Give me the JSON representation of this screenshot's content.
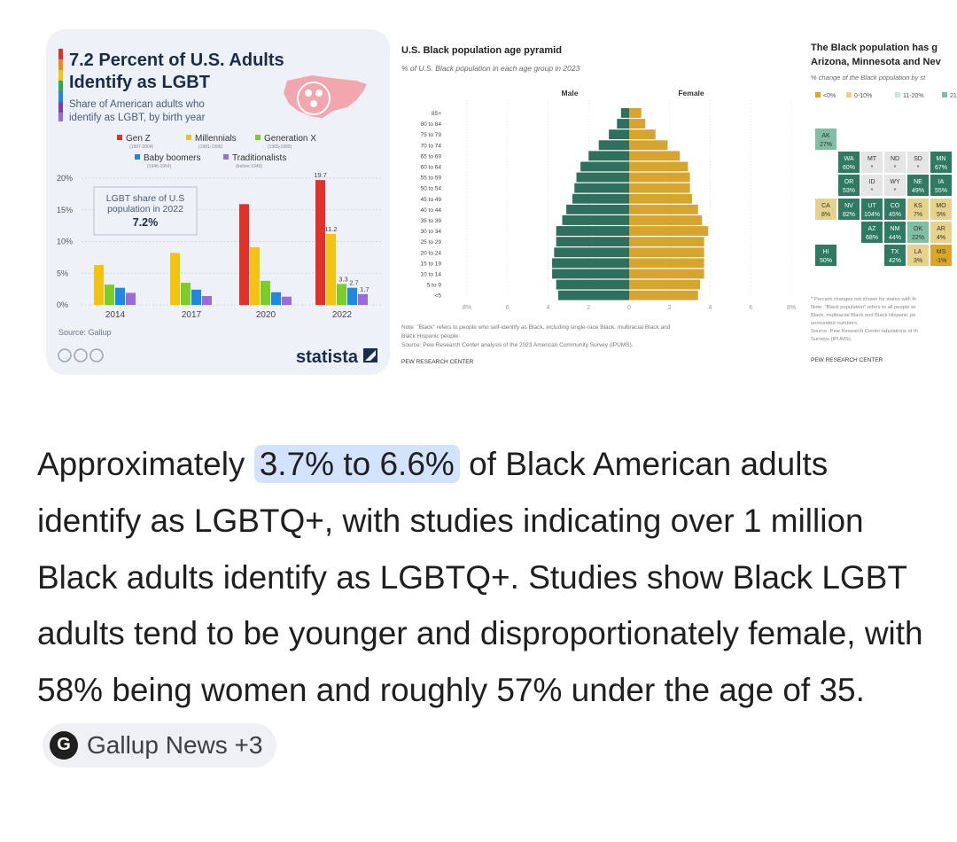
{
  "image_results": [
    {
      "title_line1": "7.2 Percent of U.S. Adults",
      "title_line2": "Identify as LGBT",
      "subtitle_line1": "Share of American adults who",
      "subtitle_line2": "identify as LGBT, by birth year",
      "callout_line1": "LGBT share of U.S",
      "callout_line2": "population in 2022",
      "callout_value": "7.2%",
      "source": "Source: Gallup",
      "brand": "statista"
    },
    {
      "title": "U.S. Black population age pyramid",
      "subtitle": "% of U.S. Black population in each age group in 2023",
      "note_line1": "Note: \"Black\" refers to people who self-identify as Black, including single-race Black, multiracial Black and",
      "note_line2": "Black Hispanic people.",
      "note_line3": "Source: Pew Research Center analysis of the 2023 American Community Survey (IPUMS).",
      "brand": "PEW RESEARCH CENTER"
    },
    {
      "title_line1": "The Black population has g",
      "title_line2": "Arizona, Minnesota and Nev",
      "subtitle": "% change of the Black population by st",
      "legend": [
        "<0%",
        "0-10%",
        "11-20%",
        "21-"
      ],
      "legend_colors": [
        "#d9a72a",
        "#e6d28a",
        "#cfe3dc",
        "#7fbfa4"
      ],
      "tiles": [
        {
          "state": "AK",
          "value": "27%",
          "color": "#7fbfa4"
        },
        {
          "state": "WA",
          "value": "60%",
          "color": "#2f7a62"
        },
        {
          "state": "MT",
          "value": "*",
          "color": "#e5e5e5"
        },
        {
          "state": "ND",
          "value": "*",
          "color": "#e5e5e5"
        },
        {
          "state": "SD",
          "value": "*",
          "color": "#e5e5e5"
        },
        {
          "state": "MN",
          "value": "67%",
          "color": "#2f7a62"
        },
        {
          "state": "OR",
          "value": "53%",
          "color": "#2f7a62"
        },
        {
          "state": "ID",
          "value": "*",
          "color": "#e5e5e5"
        },
        {
          "state": "WY",
          "value": "*",
          "color": "#e5e5e5"
        },
        {
          "state": "NE",
          "value": "49%",
          "color": "#2f7a62"
        },
        {
          "state": "IA",
          "value": "55%",
          "color": "#2f7a62"
        },
        {
          "state": "CA",
          "value": "8%",
          "color": "#e6d28a"
        },
        {
          "state": "NV",
          "value": "82%",
          "color": "#2f7a62"
        },
        {
          "state": "UT",
          "value": "104%",
          "color": "#2f7a62"
        },
        {
          "state": "CO",
          "value": "45%",
          "color": "#2f7a62"
        },
        {
          "state": "KS",
          "value": "7%",
          "color": "#e6d28a"
        },
        {
          "state": "MO",
          "value": "5%",
          "color": "#e6d28a"
        },
        {
          "state": "AZ",
          "value": "68%",
          "color": "#2f7a62"
        },
        {
          "state": "NM",
          "value": "44%",
          "color": "#2f7a62"
        },
        {
          "state": "OK",
          "value": "22%",
          "color": "#7fbfa4"
        },
        {
          "state": "AR",
          "value": "4%",
          "color": "#e6d28a"
        },
        {
          "state": "HI",
          "value": "50%",
          "color": "#2f7a62"
        },
        {
          "state": "TX",
          "value": "42%",
          "color": "#2f7a62"
        },
        {
          "state": "LA",
          "value": "3%",
          "color": "#e6d28a"
        },
        {
          "state": "MS",
          "value": "-1%",
          "color": "#d9a72a"
        }
      ],
      "note_line1": "* Percent changes not shown for states with fe",
      "note_line2": "Note: \"Black population\" refers to all people wi",
      "note_line3": "Black, multiracial Black and Black Hispanic pe",
      "note_line4": "unrounded numbers.",
      "note_line5": "Source: Pew Research Center tabulations of th",
      "note_line6": "Surveys (IPUMS).",
      "brand": "PEW RESEARCH CENTER"
    }
  ],
  "chart_data": [
    {
      "type": "bar",
      "categories": [
        "2014",
        "2017",
        "2020",
        "2022"
      ],
      "series": [
        {
          "name": "Gen Z",
          "sub": "(1997-2004)",
          "color": "#e0312b",
          "values": [
            null,
            null,
            15.9,
            19.7
          ]
        },
        {
          "name": "Millennials",
          "sub": "(1981-1996)",
          "color": "#f2c40f",
          "values": [
            6.3,
            8.2,
            9.1,
            11.2
          ]
        },
        {
          "name": "Generation X",
          "sub": "(1965-1980)",
          "color": "#7ccc2b",
          "values": [
            3.2,
            3.5,
            3.8,
            3.3
          ]
        },
        {
          "name": "Baby boomers",
          "sub": "(1946-1964)",
          "color": "#1e88e5",
          "values": [
            2.7,
            2.4,
            2.0,
            2.7
          ]
        },
        {
          "name": "Traditionalists",
          "sub": "(before 1946)",
          "color": "#9b6bd6",
          "values": [
            1.9,
            1.4,
            1.3,
            1.7
          ]
        }
      ],
      "data_labels": [
        "19.7",
        "11.2",
        "3.3",
        "2.7",
        "1.7"
      ],
      "yticks": [
        "0%",
        "5%",
        "10%",
        "15%",
        "20%"
      ],
      "ylim": [
        0,
        21
      ]
    },
    {
      "type": "bar",
      "orientation": "horizontal-pyramid",
      "left_label": "Male",
      "right_label": "Female",
      "left_color": "#2e6f5e",
      "right_color": "#d6a52f",
      "age_groups": [
        "<5",
        "5 to 9",
        "10 to 14",
        "15 to 19",
        "20 to 24",
        "25 to 29",
        "30 to 34",
        "35 to 39",
        "40 to 44",
        "45 to 49",
        "50 to 54",
        "55 to 59",
        "60 to 64",
        "65 to 69",
        "70 to 74",
        "75 to 79",
        "80 to 84",
        "85+"
      ],
      "male": [
        3.5,
        3.6,
        3.8,
        3.8,
        3.7,
        3.6,
        3.6,
        3.3,
        3.1,
        2.8,
        2.7,
        2.6,
        2.4,
        2.0,
        1.5,
        1.0,
        0.6,
        0.4
      ],
      "female": [
        3.4,
        3.5,
        3.7,
        3.7,
        3.7,
        3.7,
        3.9,
        3.6,
        3.4,
        3.1,
        3.0,
        3.0,
        2.9,
        2.5,
        1.9,
        1.3,
        0.8,
        0.6
      ],
      "xticks": [
        "8%",
        "6",
        "4",
        "2",
        "0",
        "2",
        "4",
        "6",
        "8%"
      ],
      "xlim": [
        -8,
        8
      ]
    }
  ],
  "answer": {
    "before": "Approximately ",
    "highlight": "3.7% to 6.6%",
    "after": " of Black American adults identify as LGBTQ+, with studies indicating over 1 million Black adults identify as LGBTQ+. Studies show Black LGBT adults tend to be younger and disproportionately female, with 58% being women and roughly 57% under the age of 35.",
    "source_icon": "G",
    "source_label": "Gallup News +3"
  }
}
